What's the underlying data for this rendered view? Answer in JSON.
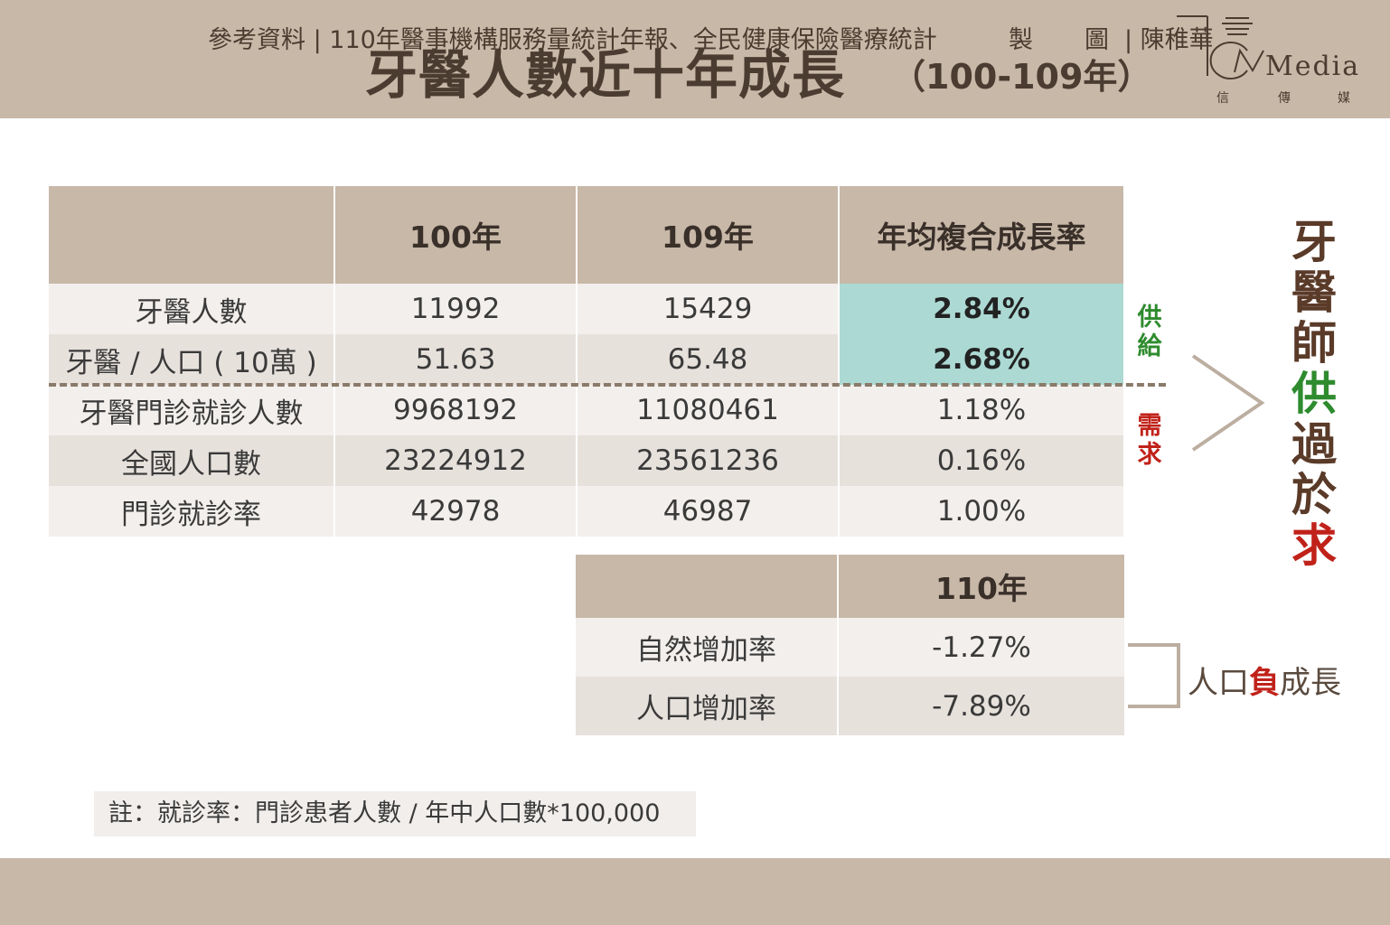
{
  "header": {
    "title": "牙醫人數近十年成長",
    "subtitle": "（100-109年）",
    "logo": {
      "text": "Media",
      "sub": [
        "信",
        "傳",
        "媒"
      ]
    }
  },
  "table": {
    "columns": [
      "",
      "100年",
      "109年",
      "年均複合成長率"
    ],
    "rows": [
      {
        "label": "牙醫人數",
        "y100": "11992",
        "y109": "15429",
        "cagr": "2.84%"
      },
      {
        "label": "牙醫 / 人口 ( 10萬 )",
        "y100": "51.63",
        "y109": "65.48",
        "cagr": "2.68%"
      },
      {
        "label": "牙醫門診就診人數",
        "y100": "9968192",
        "y109": "11080461",
        "cagr": "1.18%"
      },
      {
        "label": "全國人口數",
        "y100": "23224912",
        "y109": "23561236",
        "cagr": "0.16%"
      },
      {
        "label": "門診就診率",
        "y100": "42978",
        "y109": "46987",
        "cagr": "1.00%"
      }
    ]
  },
  "side": {
    "supply": "供給",
    "demand": "需求",
    "conclusion": [
      {
        "char": "牙",
        "color": "#5a3a28"
      },
      {
        "char": "醫",
        "color": "#5a3a28"
      },
      {
        "char": "師",
        "color": "#5a3a28"
      },
      {
        "char": "供",
        "color": "#2e8b2e"
      },
      {
        "char": "過",
        "color": "#5a3a28"
      },
      {
        "char": "於",
        "color": "#5a3a28"
      },
      {
        "char": "求",
        "color": "#c0221a"
      }
    ],
    "supply_color": "#2e8b2e",
    "demand_color": "#c0221a"
  },
  "sub_table": {
    "columns": [
      "",
      "110年"
    ],
    "rows": [
      {
        "label": "自然增加率",
        "value": "-1.27%"
      },
      {
        "label": "人口增加率",
        "value": "-7.89%"
      }
    ],
    "label_pre": "人口",
    "label_mid": "負",
    "label_post": "成長"
  },
  "note": "註：就診率：門診患者人數 / 年中人口數*100,000",
  "footer": {
    "source": "參考資料 | 110年醫事機構服務量統計年報、全民健康保險醫療統計",
    "made_label_1": "製",
    "made_label_2": "圖",
    "author": "| 陳稚華"
  },
  "colors": {
    "band": "#c8b8a8",
    "teal": "#acd9d3",
    "row_light": "#f2efec",
    "row_dark": "#e7e1dc"
  }
}
